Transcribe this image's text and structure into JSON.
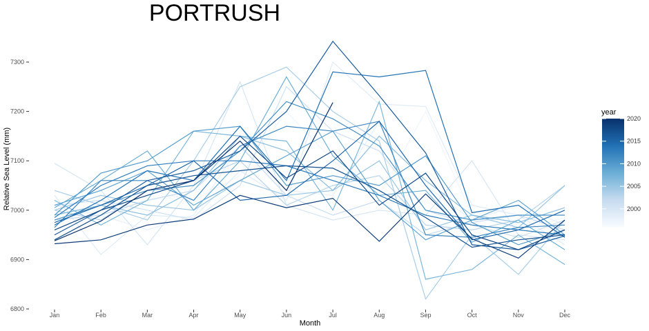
{
  "chart_data": {
    "type": "line",
    "title": "PORTRUSH",
    "xlabel": "Month",
    "ylabel": "Relative Sea Level (mm)",
    "categories": [
      "Jan",
      "Feb",
      "Mar",
      "Apr",
      "May",
      "Jun",
      "Jul",
      "Aug",
      "Sep",
      "Oct",
      "Nov",
      "Dec"
    ],
    "ylim": [
      6800,
      7350
    ],
    "yticks": [
      6800,
      6900,
      7000,
      7100,
      7200,
      7300
    ],
    "grid": false,
    "legend": {
      "title": "year",
      "position": "right",
      "ticks": [
        2000,
        2005,
        2010,
        2015,
        2020
      ],
      "range": [
        1996,
        2020
      ],
      "color_low": "#f7fbff",
      "color_high": "#08306b"
    },
    "series": [
      {
        "year": 2020,
        "values": [
          6938,
          6978,
          7040,
          7060,
          7140,
          7040,
          7218,
          null,
          null,
          null,
          null,
          null
        ]
      },
      {
        "year": 2019,
        "values": [
          6932,
          6940,
          6970,
          6982,
          7030,
          7005,
          7024,
          6937,
          7033,
          6942,
          6903,
          6980
        ]
      },
      {
        "year": 2018,
        "values": [
          6960,
          7000,
          7030,
          7060,
          7150,
          7065,
          7120,
          7010,
          7075,
          6950,
          6920,
          6960
        ]
      },
      {
        "year": 2017,
        "values": [
          6940,
          6990,
          7050,
          7070,
          7080,
          7090,
          7085,
          7040,
          6985,
          6925,
          6940,
          6950
        ]
      },
      {
        "year": 2016,
        "values": [
          6950,
          7000,
          7060,
          7080,
          7120,
          7200,
          7342,
          7232,
          7116,
          6930,
          6920,
          6948
        ]
      },
      {
        "year": 2015,
        "values": [
          6975,
          7010,
          7050,
          7100,
          7020,
          7030,
          7100,
          7180,
          7050,
          6940,
          6960,
          7000
        ]
      },
      {
        "year": 2014,
        "values": [
          6970,
          7020,
          7080,
          7060,
          7170,
          7060,
          7280,
          7270,
          7283,
          6995,
          7010,
          6945
        ]
      },
      {
        "year": 2013,
        "values": [
          6985,
          7050,
          7090,
          7100,
          7100,
          7090,
          7060,
          7030,
          6990,
          6970,
          6960,
          6950
        ]
      },
      {
        "year": 2012,
        "values": [
          6965,
          7060,
          7060,
          7020,
          7130,
          7170,
          7160,
          7180,
          6950,
          6945,
          6965,
          6970
        ]
      },
      {
        "year": 2011,
        "values": [
          6980,
          7010,
          7040,
          7050,
          7120,
          7220,
          7185,
          7130,
          7000,
          6980,
          6990,
          6990
        ]
      },
      {
        "year": 2010,
        "values": [
          6990,
          7075,
          7100,
          7160,
          7170,
          7050,
          7070,
          7050,
          7110,
          6975,
          6930,
          6960
        ]
      },
      {
        "year": 2009,
        "values": [
          7010,
          7040,
          7080,
          7010,
          7060,
          7110,
          7160,
          7020,
          6940,
          6980,
          7020,
          6950
        ]
      },
      {
        "year": 2008,
        "values": [
          7005,
          7060,
          7120,
          7000,
          7100,
          7270,
          7110,
          7030,
          7040,
          6935,
          6980,
          6920
        ]
      },
      {
        "year": 2007,
        "values": [
          7020,
          6970,
          7020,
          7160,
          7150,
          7140,
          7000,
          7220,
          6860,
          6880,
          6950,
          6890
        ]
      },
      {
        "year": 2006,
        "values": [
          6990,
          7010,
          6990,
          7040,
          7150,
          7120,
          7040,
          7150,
          7060,
          6990,
          6975,
          7005
        ]
      },
      {
        "year": 2005,
        "values": [
          7000,
          7030,
          7010,
          7000,
          7060,
          7030,
          7040,
          7100,
          6960,
          6990,
          6965,
          7050
        ]
      },
      {
        "year": 2004,
        "values": [
          7040,
          7010,
          6980,
          7100,
          7250,
          7290,
          7200,
          7140,
          6820,
          6950,
          6870,
          6980
        ]
      },
      {
        "year": 2003,
        "values": [
          7000,
          6980,
          7040,
          7060,
          7100,
          7010,
          7050,
          7070,
          6970,
          6960,
          6980,
          7050
        ]
      },
      {
        "year": 2002,
        "values": [
          6980,
          6990,
          7020,
          7040,
          7130,
          7030,
          6990,
          7020,
          6950,
          6975,
          6990,
          6960
        ]
      },
      {
        "year": 2001,
        "values": [
          7010,
          7020,
          7000,
          6980,
          7050,
          7250,
          7160,
          7120,
          7000,
          6970,
          6945,
          6980
        ]
      },
      {
        "year": 2000,
        "values": [
          7095,
          7040,
          6930,
          7050,
          7260,
          7010,
          6980,
          7000,
          6990,
          7100,
          6950,
          6940
        ]
      },
      {
        "year": 1999,
        "values": [
          7030,
          6910,
          6990,
          6985,
          7080,
          7020,
          7300,
          7215,
          7210,
          7010,
          6990,
          6930
        ]
      },
      {
        "year": 1998,
        "values": [
          7010,
          6990,
          6960,
          6990,
          7130,
          7040,
          7030,
          7180,
          7050,
          6980,
          7010,
          6970
        ]
      },
      {
        "year": 1997,
        "values": [
          6980,
          7000,
          7040,
          7020,
          7070,
          7200,
          7100,
          7030,
          7200,
          6990,
          6960,
          6985
        ]
      },
      {
        "year": 1996,
        "values": [
          6995,
          7000,
          7020,
          7030,
          7150,
          7060,
          7060,
          7090,
          6940,
          7000,
          6950,
          6960
        ]
      }
    ]
  }
}
